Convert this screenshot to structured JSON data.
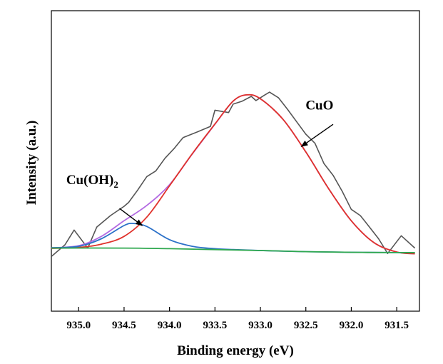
{
  "chart_data": {
    "type": "line",
    "xlabel": "Binding energy (eV)",
    "ylabel": "Intensity (a.u.)",
    "x_reversed": true,
    "xlim": [
      935.3,
      931.25
    ],
    "ylim": [
      0,
      100
    ],
    "x_ticks": [
      935.0,
      934.5,
      934.0,
      933.5,
      933.0,
      932.5,
      932.0,
      931.5
    ],
    "x_tick_labels": [
      "935.0",
      "934.5",
      "934.0",
      "933.5",
      "933.0",
      "932.5",
      "932.0",
      "931.5"
    ],
    "grid": false,
    "series": [
      {
        "color": "#555555",
        "style": "jagged",
        "x": [
          935.3,
          935.15,
          935.05,
          934.9,
          934.8,
          934.65,
          934.5,
          934.45,
          934.35,
          934.25,
          934.15,
          934.05,
          933.95,
          933.85,
          933.7,
          933.55,
          933.5,
          933.35,
          933.3,
          933.2,
          933.1,
          933.05,
          932.95,
          932.9,
          932.8,
          932.7,
          932.6,
          932.5,
          932.4,
          932.3,
          932.2,
          932.1,
          932.0,
          931.9,
          931.8,
          931.7,
          931.6,
          931.45,
          931.3
        ],
        "y": [
          18.2,
          22.1,
          27.0,
          21.0,
          28.0,
          31.8,
          34.9,
          36.2,
          40.3,
          44.8,
          46.7,
          50.9,
          54.1,
          57.8,
          59.6,
          61.5,
          66.9,
          66.1,
          68.9,
          69.9,
          71.5,
          70.1,
          72.0,
          72.9,
          71.0,
          67.1,
          63.0,
          58.9,
          55.9,
          49.1,
          45.2,
          39.9,
          33.9,
          31.8,
          28.0,
          24.1,
          19.2,
          25.1,
          21.0
        ]
      },
      {
        "color": "#b36ae2",
        "style": "smooth",
        "x": [
          935.3,
          935.0,
          934.75,
          934.5,
          934.25,
          934.0,
          933.75,
          933.5,
          933.3,
          933.15,
          933.0,
          932.75,
          932.5,
          932.25,
          932.0,
          931.75,
          931.5,
          931.3
        ],
        "y": [
          21.1,
          21.8,
          24.9,
          30.1,
          35.2,
          42.1,
          52.3,
          62.2,
          69.9,
          72.0,
          70.7,
          63.8,
          53.0,
          40.8,
          30.1,
          22.8,
          19.7,
          19.1
        ]
      },
      {
        "color": "#e0322b",
        "style": "smooth",
        "x": [
          935.3,
          935.0,
          934.75,
          934.5,
          934.25,
          934.0,
          933.75,
          933.5,
          933.3,
          933.15,
          933.0,
          932.75,
          932.5,
          932.25,
          932.0,
          931.75,
          931.5,
          931.3
        ],
        "y": [
          20.9,
          21.2,
          22.3,
          24.9,
          31.3,
          41.7,
          52.4,
          62.3,
          69.9,
          72.0,
          70.7,
          63.8,
          53.0,
          40.8,
          30.1,
          22.8,
          19.7,
          19.1
        ]
      },
      {
        "color": "#2b70c8",
        "style": "smooth",
        "x": [
          935.3,
          935.0,
          934.75,
          934.5,
          934.4,
          934.25,
          934.0,
          933.75,
          933.5,
          933.3,
          933.0,
          932.5,
          932.0,
          931.5,
          931.3
        ],
        "y": [
          21.1,
          21.6,
          24.1,
          28.5,
          29.2,
          28.2,
          23.8,
          21.6,
          20.8,
          20.5,
          20.2,
          19.8,
          19.6,
          19.5,
          19.5
        ]
      },
      {
        "color": "#2fa84f",
        "style": "smooth",
        "x": [
          935.3,
          934.5,
          934.0,
          933.5,
          933.0,
          932.5,
          932.0,
          931.5,
          931.3
        ],
        "y": [
          21.0,
          21.0,
          20.8,
          20.5,
          20.2,
          19.8,
          19.6,
          19.5,
          19.5
        ]
      }
    ],
    "annotations": [
      {
        "label": "Cu(OH)",
        "subscript": "2",
        "x": 934.85,
        "y": 42.3,
        "arrow_from": [
          934.55,
          34.2
        ],
        "arrow_to": [
          934.3,
          28.5
        ]
      },
      {
        "label": "CuO",
        "x": 932.35,
        "y": 67.1,
        "arrow_from": [
          932.2,
          62.2
        ],
        "arrow_to": [
          932.55,
          54.8
        ]
      }
    ]
  }
}
